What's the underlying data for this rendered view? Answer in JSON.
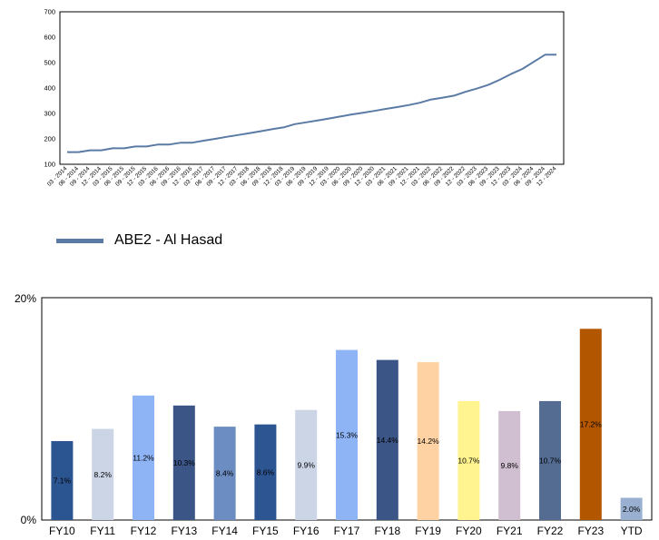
{
  "chart_data": [
    {
      "type": "line",
      "title": "",
      "xlabel": "",
      "ylabel": "",
      "ylim": [
        100,
        700
      ],
      "yticks": [
        100,
        200,
        300,
        400,
        500,
        600,
        700
      ],
      "x": [
        "03 - 2014",
        "06 - 2014",
        "09 - 2014",
        "12 - 2014",
        "03 - 2015",
        "06 - 2015",
        "09 - 2015",
        "12 - 2015",
        "03 - 2016",
        "06 - 2016",
        "09 - 2016",
        "12 - 2016",
        "03 - 2017",
        "06 - 2017",
        "09 - 2017",
        "12 - 2017",
        "03 - 2018",
        "06 - 2018",
        "09 - 2018",
        "12 - 2018",
        "03 - 2019",
        "06 - 2019",
        "09 - 2019",
        "12 - 2019",
        "03 - 2020",
        "06 - 2020",
        "09 - 2020",
        "12 - 2020",
        "03 - 2021",
        "06 - 2021",
        "09 - 2021",
        "12 - 2021",
        "03 - 2022",
        "06 - 2022",
        "09 - 2022",
        "12 - 2022",
        "03 - 2023",
        "06 - 2023",
        "09 - 2023",
        "12 - 2023",
        "03 - 2024",
        "06 - 2024",
        "09 - 2024",
        "12 - 2024"
      ],
      "series": [
        {
          "name": "ABE2 - Al Hasad",
          "color": "#5B7BA5",
          "values": [
            148,
            148,
            155,
            155,
            163,
            163,
            170,
            170,
            178,
            178,
            185,
            185,
            193,
            200,
            208,
            215,
            222,
            230,
            238,
            245,
            258,
            265,
            272,
            280,
            288,
            296,
            303,
            310,
            318,
            325,
            333,
            342,
            355,
            362,
            370,
            385,
            398,
            412,
            432,
            455,
            475,
            503,
            531,
            531
          ]
        }
      ],
      "grid": false,
      "legend": "bottom-left"
    },
    {
      "type": "bar",
      "title": "",
      "xlabel": "",
      "ylabel": "",
      "ylim": [
        0,
        20
      ],
      "ytick_labels": [
        "0%",
        "20%"
      ],
      "categories": [
        "FY10",
        "FY11",
        "FY12",
        "FY13",
        "FY14",
        "FY15",
        "FY16",
        "FY17",
        "FY18",
        "FY19",
        "FY20",
        "FY21",
        "FY22",
        "FY23",
        "YTD"
      ],
      "values": [
        7.1,
        8.2,
        11.2,
        10.3,
        8.4,
        8.6,
        9.9,
        15.3,
        14.4,
        14.2,
        10.7,
        9.8,
        10.7,
        17.2,
        2.0
      ],
      "labels": [
        "7.1%",
        "8.2%",
        "11.2%",
        "10.3%",
        "8.4%",
        "8.6%",
        "9.9%",
        "15.3%",
        "14.4%",
        "14.2%",
        "10.7%",
        "9.8%",
        "10.7%",
        "17.2%",
        "2.0%"
      ],
      "colors": [
        "#2B5591",
        "#CBD5E6",
        "#8FB4F5",
        "#3B5587",
        "#6B8DC2",
        "#2C5592",
        "#CBD5E6",
        "#8FB4F5",
        "#3B5587",
        "#FFD2A4",
        "#FFF48F",
        "#D0BFD0",
        "#546B92",
        "#B35600",
        "#9AB0D1"
      ],
      "grid": false,
      "legend": "none"
    }
  ]
}
